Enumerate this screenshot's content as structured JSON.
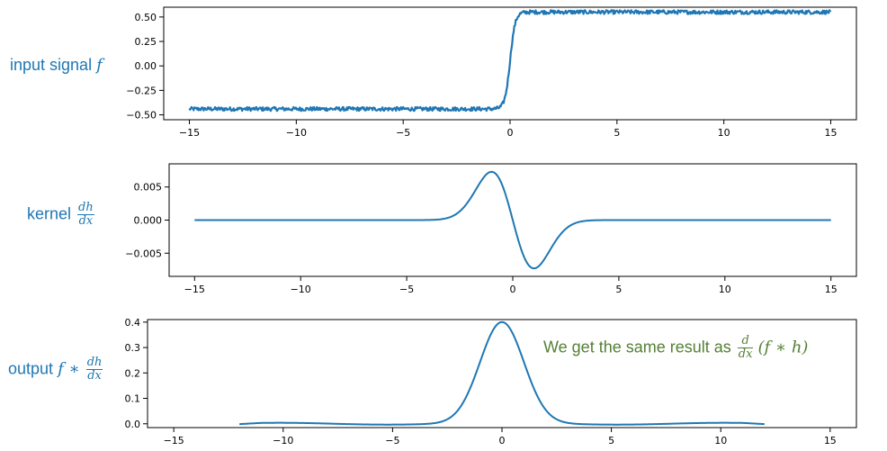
{
  "labels": {
    "input": {
      "text": "input signal",
      "symbol": "f"
    },
    "kernel": {
      "text": "kernel",
      "num": "dh",
      "den": "dx"
    },
    "output": {
      "text": "output",
      "expr": "f ∗",
      "num": "dh",
      "den": "dx"
    }
  },
  "annotation": {
    "text": "We get the same result as",
    "num": "d",
    "den": "dx",
    "expr": "(f ∗ h)"
  },
  "colors": {
    "line": "#1f77b4",
    "label": "#1f77b4",
    "annotation": "#538135",
    "axis": "#000000"
  },
  "chart_data": [
    {
      "type": "line",
      "name": "input",
      "xlim": [
        -16.2,
        16.2
      ],
      "ylim": [
        -0.55,
        0.6
      ],
      "xticks": [
        -15,
        -10,
        -5,
        0,
        5,
        10,
        15
      ],
      "yticks": [
        -0.5,
        -0.25,
        0.0,
        0.25,
        0.5
      ],
      "ytick_labels": [
        "−0.50",
        "−0.25",
        "0.00",
        "0.25",
        "0.50"
      ],
      "xtick_labels": [
        "−15",
        "−10",
        "−5",
        "0",
        "5",
        "10",
        "15"
      ],
      "series": [
        {
          "model": "noisy step from -0.44 to 0.55 around x=0",
          "x_range": [
            -15,
            15
          ],
          "low": -0.44,
          "high": 0.55,
          "noise": 0.02
        }
      ]
    },
    {
      "type": "line",
      "name": "kernel",
      "xlim": [
        -16.2,
        16.2
      ],
      "ylim": [
        -0.0085,
        0.0085
      ],
      "xticks": [
        -15,
        -10,
        -5,
        0,
        5,
        10,
        15
      ],
      "yticks": [
        -0.005,
        0.0,
        0.005
      ],
      "ytick_labels": [
        "−0.005",
        "0.000",
        "0.005"
      ],
      "xtick_labels": [
        "−15",
        "−10",
        "−5",
        "0",
        "5",
        "10",
        "15"
      ],
      "series": [
        {
          "model": "derivative of gaussian",
          "x_range": [
            -15,
            15
          ],
          "peak": 0.0073,
          "peak_x": -1.0
        }
      ]
    },
    {
      "type": "line",
      "name": "output",
      "xlim": [
        -16.2,
        16.2
      ],
      "ylim": [
        -0.015,
        0.41
      ],
      "xticks": [
        -15,
        -10,
        -5,
        0,
        5,
        10,
        15
      ],
      "yticks": [
        0.0,
        0.1,
        0.2,
        0.3,
        0.4
      ],
      "ytick_labels": [
        "0.0",
        "0.1",
        "0.2",
        "0.3",
        "0.4"
      ],
      "xtick_labels": [
        "−15",
        "−10",
        "−5",
        "0",
        "5",
        "10",
        "15"
      ],
      "series": [
        {
          "model": "gaussian with small ripple",
          "x_range": [
            -12,
            12
          ],
          "peak": 0.4,
          "sigma": 1.0
        }
      ]
    }
  ]
}
